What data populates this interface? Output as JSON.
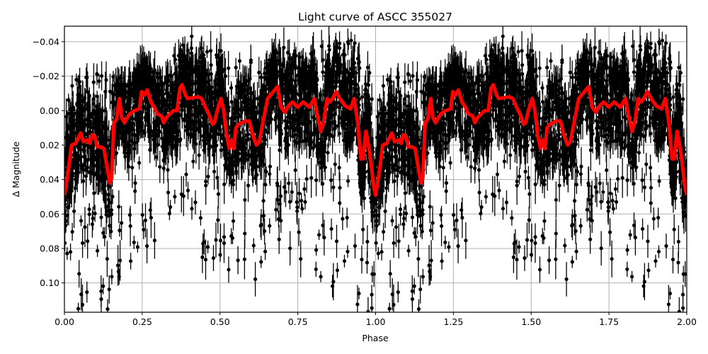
{
  "chart_data": {
    "type": "scatter",
    "title": "Light curve of ASCC 355027",
    "xlabel": "Phase",
    "ylabel": "Δ Magnitude",
    "xlim": [
      0.0,
      2.0
    ],
    "ylim": [
      0.117,
      -0.049
    ],
    "y_inverted": true,
    "grid": true,
    "legend": null,
    "x_ticks": [
      {
        "value": 0.0,
        "label": "0.00"
      },
      {
        "value": 0.25,
        "label": "0.25"
      },
      {
        "value": 0.5,
        "label": "0.50"
      },
      {
        "value": 0.75,
        "label": "0.75"
      },
      {
        "value": 1.0,
        "label": "1.00"
      },
      {
        "value": 1.25,
        "label": "1.25"
      },
      {
        "value": 1.5,
        "label": "1.50"
      },
      {
        "value": 1.75,
        "label": "1.75"
      },
      {
        "value": 2.0,
        "label": "2.00"
      }
    ],
    "y_ticks": [
      {
        "value": -0.04,
        "label": "−0.04"
      },
      {
        "value": -0.02,
        "label": "−0.02"
      },
      {
        "value": 0.0,
        "label": "0.00"
      },
      {
        "value": 0.02,
        "label": "0.02"
      },
      {
        "value": 0.04,
        "label": "0.04"
      },
      {
        "value": 0.06,
        "label": "0.06"
      },
      {
        "value": 0.08,
        "label": "0.08"
      },
      {
        "value": 0.1,
        "label": "0.10"
      }
    ],
    "series": [
      {
        "name": "observations",
        "kind": "errorbar-scatter",
        "color": "#000000",
        "description": "Dense cloud of phase-folded photometric points with vertical error bars, spanning roughly -0.045 to 0.117 mag, repeated over two phase cycles",
        "envelope_per_cycle": {
          "phase": [
            0.0,
            0.05,
            0.1,
            0.15,
            0.2,
            0.25,
            0.3,
            0.35,
            0.4,
            0.45,
            0.5,
            0.55,
            0.6,
            0.65,
            0.7,
            0.75,
            0.8,
            0.85,
            0.9,
            0.95,
            1.0
          ],
          "upper": [
            -0.012,
            -0.02,
            -0.022,
            -0.02,
            -0.018,
            -0.027,
            -0.022,
            -0.032,
            -0.045,
            -0.035,
            -0.035,
            -0.03,
            -0.03,
            -0.03,
            -0.04,
            -0.035,
            -0.035,
            -0.04,
            -0.04,
            -0.042,
            -0.012
          ],
          "lower": [
            0.117,
            0.117,
            0.117,
            0.117,
            0.095,
            0.08,
            0.085,
            0.06,
            0.055,
            0.09,
            0.117,
            0.09,
            0.11,
            0.08,
            0.08,
            0.095,
            0.09,
            0.11,
            0.11,
            0.117,
            0.117
          ]
        }
      },
      {
        "name": "model",
        "kind": "line",
        "color": "#ff0000",
        "linewidth": 5,
        "period_repeat": 2,
        "x": [
          0.0,
          0.011,
          0.023,
          0.036,
          0.052,
          0.061,
          0.075,
          0.082,
          0.089,
          0.098,
          0.105,
          0.116,
          0.127,
          0.139,
          0.146,
          0.152,
          0.159,
          0.168,
          0.177,
          0.184,
          0.193,
          0.209,
          0.225,
          0.241,
          0.248,
          0.257,
          0.266,
          0.278,
          0.289,
          0.298,
          0.312,
          0.319,
          0.328,
          0.339,
          0.35,
          0.362,
          0.371,
          0.378,
          0.389,
          0.396,
          0.43,
          0.441,
          0.453,
          0.464,
          0.476,
          0.482,
          0.491,
          0.503,
          0.512,
          0.521,
          0.53,
          0.537,
          0.544,
          0.551,
          0.56,
          0.571,
          0.582,
          0.594,
          0.605,
          0.617,
          0.626,
          0.639,
          0.653,
          0.685,
          0.696,
          0.708,
          0.721,
          0.733,
          0.749,
          0.767,
          0.787,
          0.803,
          0.812,
          0.824,
          0.833,
          0.844,
          0.853,
          0.862,
          0.874,
          0.885,
          0.901,
          0.919,
          0.931,
          0.942,
          0.953,
          0.96,
          0.969,
          0.981,
          0.994,
          1.0
        ],
        "y": [
          0.049,
          0.037,
          0.02,
          0.019,
          0.013,
          0.018,
          0.017,
          0.019,
          0.014,
          0.015,
          0.021,
          0.021,
          0.022,
          0.035,
          0.042,
          0.039,
          0.007,
          0.005,
          -0.007,
          0.004,
          0.007,
          0.002,
          0.0,
          -0.001,
          -0.011,
          -0.009,
          -0.012,
          -0.005,
          -0.002,
          0.002,
          0.003,
          0.007,
          0.004,
          0.002,
          0.0,
          0.0,
          -0.013,
          -0.015,
          -0.009,
          -0.007,
          -0.008,
          -0.007,
          -0.002,
          0.002,
          0.008,
          0.007,
          0.0,
          -0.007,
          0.0,
          0.014,
          0.022,
          0.017,
          0.022,
          0.01,
          0.008,
          0.007,
          0.006,
          0.006,
          0.014,
          0.02,
          0.018,
          0.006,
          -0.007,
          -0.014,
          -0.002,
          0.001,
          -0.003,
          -0.005,
          -0.002,
          -0.005,
          -0.002,
          -0.007,
          0.002,
          0.012,
          0.007,
          -0.007,
          -0.005,
          -0.007,
          -0.011,
          -0.007,
          -0.003,
          -0.001,
          -0.007,
          0.006,
          0.028,
          0.028,
          0.012,
          0.024,
          0.044,
          0.049
        ]
      }
    ]
  }
}
